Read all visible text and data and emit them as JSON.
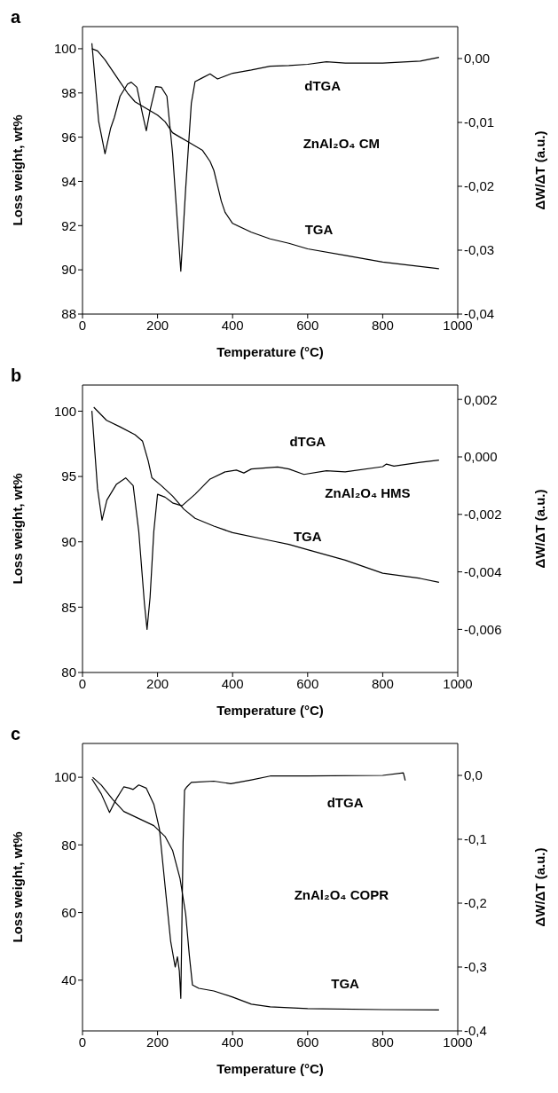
{
  "chart_data": [
    {
      "type": "line",
      "title": "a",
      "xlabel": "Temperature (°C)",
      "ylabel": "Loss weight, wt%",
      "y2label": "ΔW/ΔT  (a.u.)",
      "annotations": [
        "ZnAl₂O₄ CM"
      ],
      "xlim": [
        0,
        1000
      ],
      "xticks": [
        0,
        200,
        400,
        600,
        800,
        1000
      ],
      "ylim": [
        88,
        101
      ],
      "yticks": [
        88,
        90,
        92,
        94,
        96,
        98,
        100
      ],
      "y2lim": [
        -0.04,
        0.005
      ],
      "y2ticks": [
        {
          "value": 0,
          "label": "0,00"
        },
        {
          "value": -0.01,
          "label": "-0,01"
        },
        {
          "value": -0.02,
          "label": "-0,02"
        },
        {
          "value": -0.03,
          "label": "-0,03"
        },
        {
          "value": -0.04,
          "label": "-0,04"
        }
      ],
      "series": [
        {
          "name": "dTGA",
          "color": "#000000",
          "axis": "y2",
          "x": [
            25,
            43,
            60,
            75,
            85,
            100,
            120,
            130,
            145,
            160,
            170,
            180,
            195,
            210,
            225,
            240,
            262,
            275,
            290,
            300,
            320,
            340,
            350,
            360,
            400,
            450,
            500,
            550,
            600,
            650,
            700,
            800,
            900,
            950
          ],
          "values": [
            0.0024,
            -0.0098,
            -0.0149,
            -0.0109,
            -0.0092,
            -0.0059,
            -0.004,
            -0.0037,
            -0.0045,
            -0.0087,
            -0.0113,
            -0.0081,
            -0.0044,
            -0.0045,
            -0.0059,
            -0.0148,
            -0.0333,
            -0.0203,
            -0.007,
            -0.0036,
            -0.003,
            -0.0024,
            -0.0028,
            -0.0032,
            -0.0023,
            -0.0018,
            -0.0012,
            -0.0011,
            -0.0009,
            -0.0005,
            -0.0007,
            -0.0007,
            -0.0004,
            0.0002
          ]
        },
        {
          "name": "TGA",
          "color": "#000000",
          "x": [
            25,
            40,
            60,
            80,
            100,
            120,
            140,
            160,
            180,
            200,
            220,
            240,
            260,
            280,
            300,
            320,
            340,
            350,
            360,
            370,
            380,
            400,
            450,
            500,
            550,
            600,
            700,
            800,
            900,
            950
          ],
          "values": [
            100.0,
            99.9,
            99.5,
            99.0,
            98.5,
            98.0,
            97.6,
            97.4,
            97.2,
            97.0,
            96.7,
            96.2,
            96.0,
            95.8,
            95.6,
            95.4,
            94.9,
            94.5,
            93.8,
            93.1,
            92.6,
            92.1,
            91.7,
            91.4,
            91.2,
            90.95,
            90.65,
            90.35,
            90.15,
            90.05
          ]
        }
      ]
    },
    {
      "type": "line",
      "title": "b",
      "xlabel": "Temperature (°C)",
      "ylabel": "Loss weight, wt%",
      "y2label": "ΔW/ΔT  (a.u.)",
      "annotations": [
        "ZnAl₂O₄ HMS"
      ],
      "xlim": [
        0,
        1000
      ],
      "xticks": [
        0,
        200,
        400,
        600,
        800,
        1000
      ],
      "ylim": [
        80,
        102
      ],
      "yticks": [
        80,
        85,
        90,
        95,
        100
      ],
      "y2lim": [
        -0.0075,
        0.0025
      ],
      "y2ticks": [
        {
          "value": 0.002,
          "label": "0,002"
        },
        {
          "value": 0,
          "label": "0,000"
        },
        {
          "value": -0.002,
          "label": "-0,002"
        },
        {
          "value": -0.004,
          "label": "-0,004"
        },
        {
          "value": -0.006,
          "label": "-0,006"
        }
      ],
      "series": [
        {
          "name": "dTGA",
          "color": "#000000",
          "axis": "y2",
          "x": [
            25,
            40,
            52,
            65,
            90,
            115,
            135,
            150,
            165,
            172,
            180,
            190,
            200,
            220,
            240,
            265,
            300,
            340,
            380,
            410,
            430,
            450,
            520,
            550,
            590,
            650,
            700,
            800,
            810,
            830,
            900,
            950
          ],
          "values": [
            0.0016,
            -0.0011,
            -0.0022,
            -0.0015,
            -0.00096,
            -0.00073,
            -0.001,
            -0.0026,
            -0.0051,
            -0.006,
            -0.0049,
            -0.0026,
            -0.0013,
            -0.0014,
            -0.0016,
            -0.0017,
            -0.0013,
            -0.00077,
            -0.00052,
            -0.00046,
            -0.00056,
            -0.00042,
            -0.00035,
            -0.00042,
            -0.00061,
            -0.00048,
            -0.00052,
            -0.00034,
            -0.00025,
            -0.00032,
            -0.00019,
            -0.00011
          ]
        },
        {
          "name": "TGA",
          "color": "#000000",
          "x": [
            30,
            64,
            100,
            140,
            160,
            175,
            185,
            210,
            240,
            270,
            300,
            350,
            400,
            500,
            550,
            600,
            700,
            800,
            900,
            950
          ],
          "values": [
            100.3,
            99.3,
            98.8,
            98.2,
            97.7,
            96.2,
            94.9,
            94.3,
            93.5,
            92.5,
            91.8,
            91.2,
            90.7,
            90.1,
            89.8,
            89.4,
            88.6,
            87.6,
            87.2,
            86.9
          ]
        }
      ]
    },
    {
      "type": "line",
      "title": "c",
      "xlabel": "Temperature (°C)",
      "ylabel": "Loss weight, wt%",
      "y2label": "ΔW/ΔT  (a.u.)",
      "annotations": [
        "ZnAl₂O₄ COPR"
      ],
      "xlim": [
        0,
        1000
      ],
      "xticks": [
        0,
        200,
        400,
        600,
        800,
        1000
      ],
      "ylim": [
        25,
        110
      ],
      "yticks": [
        40,
        60,
        80,
        100
      ],
      "y2lim": [
        -0.4,
        0.05
      ],
      "y2ticks": [
        {
          "value": 0,
          "label": "0,0"
        },
        {
          "value": -0.1,
          "label": "-0,1"
        },
        {
          "value": -0.2,
          "label": "-0,2"
        },
        {
          "value": -0.3,
          "label": "-0,3"
        },
        {
          "value": -0.4,
          "label": "-0,4"
        }
      ],
      "series": [
        {
          "name": "dTGA",
          "color": "#000000",
          "axis": "y2",
          "x": [
            25,
            50,
            72,
            90,
            110,
            125,
            135,
            150,
            170,
            190,
            205,
            220,
            235,
            247,
            253,
            258,
            262,
            268,
            272,
            278,
            290,
            350,
            395,
            450,
            500,
            600,
            800,
            855,
            860
          ],
          "values": [
            -0.0055,
            -0.029,
            -0.058,
            -0.037,
            -0.018,
            -0.02,
            -0.022,
            -0.015,
            -0.02,
            -0.045,
            -0.084,
            -0.173,
            -0.26,
            -0.3,
            -0.284,
            -0.306,
            -0.349,
            -0.106,
            -0.023,
            -0.018,
            -0.011,
            -0.009,
            -0.013,
            -0.007,
            -0.001,
            -0.001,
            0.0,
            0.004,
            -0.008
          ]
        },
        {
          "name": "TGA",
          "color": "#000000",
          "x": [
            27,
            50,
            80,
            110,
            150,
            190,
            220,
            240,
            260,
            275,
            285,
            293,
            310,
            350,
            400,
            450,
            500,
            600,
            800,
            950
          ],
          "values": [
            100,
            97.7,
            93.5,
            89.9,
            87.8,
            85.7,
            82.5,
            78.4,
            70,
            59.5,
            47,
            38.6,
            37.6,
            36.8,
            35,
            32.9,
            32.1,
            31.6,
            31.3,
            31.2
          ]
        }
      ]
    }
  ]
}
